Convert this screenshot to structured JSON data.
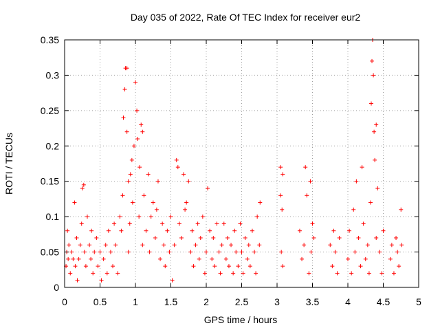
{
  "chart_data": {
    "type": "scatter",
    "title": "Day 035 of 2022, Rate Of TEC Index for receiver eur2",
    "xlabel": "GPS time / hours",
    "ylabel": "ROTI / TECUs",
    "xlim": [
      0,
      5
    ],
    "ylim": [
      0,
      0.35
    ],
    "xticks": [
      0,
      0.5,
      1,
      1.5,
      2,
      2.5,
      3,
      3.5,
      4,
      4.5,
      5
    ],
    "xtick_labels": [
      "0",
      "0.5",
      "1",
      "1.5",
      "2",
      "2.5",
      "3",
      "3.5",
      "4",
      "4.5",
      "5"
    ],
    "yticks": [
      0,
      0.05,
      0.1,
      0.15,
      0.2,
      0.25,
      0.3,
      0.35
    ],
    "ytick_labels": [
      "0",
      "0.05",
      "0.1",
      "0.15",
      "0.2",
      "0.25",
      "0.3",
      "0.35"
    ],
    "grid": true,
    "marker": "+",
    "marker_color": "#ff0000",
    "series": [
      {
        "name": "ROTI",
        "points": [
          [
            0.02,
            0.03
          ],
          [
            0.03,
            0.05
          ],
          [
            0.04,
            0.08
          ],
          [
            0.05,
            0.04
          ],
          [
            0.06,
            0.06
          ],
          [
            0.08,
            0.02
          ],
          [
            0.1,
            0.05
          ],
          [
            0.12,
            0.04
          ],
          [
            0.14,
            0.12
          ],
          [
            0.15,
            0.03
          ],
          [
            0.17,
            0.07
          ],
          [
            0.18,
            0.01
          ],
          [
            0.2,
            0.04
          ],
          [
            0.22,
            0.06
          ],
          [
            0.24,
            0.09
          ],
          [
            0.25,
            0.14
          ],
          [
            0.27,
            0.145
          ],
          [
            0.28,
            0.05
          ],
          [
            0.3,
            0.03
          ],
          [
            0.32,
            0.1
          ],
          [
            0.35,
            0.06
          ],
          [
            0.37,
            0.04
          ],
          [
            0.38,
            0.08
          ],
          [
            0.4,
            0.02
          ],
          [
            0.42,
            0.05
          ],
          [
            0.45,
            0.07
          ],
          [
            0.47,
            0.03
          ],
          [
            0.5,
            0.05
          ],
          [
            0.52,
            0.01
          ],
          [
            0.55,
            0.04
          ],
          [
            0.58,
            0.06
          ],
          [
            0.6,
            0.02
          ],
          [
            0.62,
            0.08
          ],
          [
            0.65,
            0.05
          ],
          [
            0.68,
            0.03
          ],
          [
            0.7,
            0.09
          ],
          [
            0.72,
            0.06
          ],
          [
            0.75,
            0.02
          ],
          [
            0.78,
            0.1
          ],
          [
            0.8,
            0.08
          ],
          [
            0.82,
            0.13
          ],
          [
            0.83,
            0.24
          ],
          [
            0.85,
            0.28
          ],
          [
            0.86,
            0.31
          ],
          [
            0.88,
            0.31
          ],
          [
            0.88,
            0.22
          ],
          [
            0.9,
            0.15
          ],
          [
            0.9,
            0.05
          ],
          [
            0.92,
            0.09
          ],
          [
            0.93,
            0.16
          ],
          [
            0.95,
            0.18
          ],
          [
            0.96,
            0.12
          ],
          [
            0.98,
            0.2
          ],
          [
            1.0,
            0.29
          ],
          [
            1.02,
            0.25
          ],
          [
            1.03,
            0.21
          ],
          [
            1.05,
            0.1
          ],
          [
            1.06,
            0.17
          ],
          [
            1.08,
            0.23
          ],
          [
            1.1,
            0.22
          ],
          [
            1.1,
            0.06
          ],
          [
            1.12,
            0.13
          ],
          [
            1.15,
            0.08
          ],
          [
            1.18,
            0.16
          ],
          [
            1.2,
            0.05
          ],
          [
            1.22,
            0.1
          ],
          [
            1.25,
            0.12
          ],
          [
            1.28,
            0.07
          ],
          [
            1.3,
            0.11
          ],
          [
            1.32,
            0.15
          ],
          [
            1.35,
            0.04
          ],
          [
            1.38,
            0.09
          ],
          [
            1.4,
            0.06
          ],
          [
            1.42,
            0.03
          ],
          [
            1.45,
            0.08
          ],
          [
            1.48,
            0.05
          ],
          [
            1.5,
            0.1
          ],
          [
            1.52,
            0.01
          ],
          [
            1.55,
            0.06
          ],
          [
            1.58,
            0.18
          ],
          [
            1.6,
            0.17
          ],
          [
            1.62,
            0.09
          ],
          [
            1.65,
            0.07
          ],
          [
            1.68,
            0.16
          ],
          [
            1.7,
            0.11
          ],
          [
            1.72,
            0.12
          ],
          [
            1.75,
            0.15
          ],
          [
            1.78,
            0.05
          ],
          [
            1.8,
            0.08
          ],
          [
            1.82,
            0.03
          ],
          [
            1.85,
            0.06
          ],
          [
            1.88,
            0.09
          ],
          [
            1.9,
            0.04
          ],
          [
            1.92,
            0.07
          ],
          [
            1.95,
            0.1
          ],
          [
            1.98,
            0.02
          ],
          [
            2.0,
            0.05
          ],
          [
            2.02,
            0.14
          ],
          [
            2.05,
            0.08
          ],
          [
            2.08,
            0.04
          ],
          [
            2.1,
            0.07
          ],
          [
            2.12,
            0.03
          ],
          [
            2.15,
            0.09
          ],
          [
            2.18,
            0.05
          ],
          [
            2.2,
            0.02
          ],
          [
            2.22,
            0.06
          ],
          [
            2.25,
            0.09
          ],
          [
            2.28,
            0.04
          ],
          [
            2.3,
            0.07
          ],
          [
            2.32,
            0.03
          ],
          [
            2.35,
            0.06
          ],
          [
            2.38,
            0.02
          ],
          [
            2.4,
            0.08
          ],
          [
            2.42,
            0.05
          ],
          [
            2.45,
            0.03
          ],
          [
            2.48,
            0.09
          ],
          [
            2.5,
            0.05
          ],
          [
            2.52,
            0.02
          ],
          [
            2.55,
            0.07
          ],
          [
            2.58,
            0.04
          ],
          [
            2.6,
            0.06
          ],
          [
            2.62,
            0.03
          ],
          [
            2.65,
            0.08
          ],
          [
            2.68,
            0.05
          ],
          [
            2.7,
            0.02
          ],
          [
            2.72,
            0.1
          ],
          [
            2.75,
            0.06
          ],
          [
            2.76,
            0.12
          ],
          [
            3.05,
            0.17
          ],
          [
            3.05,
            0.13
          ],
          [
            3.06,
            0.05
          ],
          [
            3.07,
            0.11
          ],
          [
            3.08,
            0.03
          ],
          [
            3.08,
            0.16
          ],
          [
            3.32,
            0.08
          ],
          [
            3.35,
            0.04
          ],
          [
            3.38,
            0.06
          ],
          [
            3.4,
            0.17
          ],
          [
            3.42,
            0.13
          ],
          [
            3.45,
            0.02
          ],
          [
            3.47,
            0.15
          ],
          [
            3.48,
            0.05
          ],
          [
            3.5,
            0.09
          ],
          [
            3.52,
            0.07
          ],
          [
            3.75,
            0.06
          ],
          [
            3.78,
            0.03
          ],
          [
            3.8,
            0.08
          ],
          [
            3.82,
            0.05
          ],
          [
            3.85,
            0.02
          ],
          [
            3.88,
            0.07
          ],
          [
            4.0,
            0.04
          ],
          [
            4.02,
            0.08
          ],
          [
            4.05,
            0.02
          ],
          [
            4.08,
            0.11
          ],
          [
            4.1,
            0.05
          ],
          [
            4.12,
            0.15
          ],
          [
            4.15,
            0.07
          ],
          [
            4.18,
            0.03
          ],
          [
            4.2,
            0.17
          ],
          [
            4.22,
            0.09
          ],
          [
            4.25,
            0.04
          ],
          [
            4.28,
            0.06
          ],
          [
            4.3,
            0.02
          ],
          [
            4.32,
            0.12
          ],
          [
            4.33,
            0.26
          ],
          [
            4.34,
            0.32
          ],
          [
            4.35,
            0.35
          ],
          [
            4.36,
            0.3
          ],
          [
            4.37,
            0.22
          ],
          [
            4.38,
            0.18
          ],
          [
            4.4,
            0.23
          ],
          [
            4.4,
            0.07
          ],
          [
            4.42,
            0.14
          ],
          [
            4.45,
            0.05
          ],
          [
            4.48,
            0.02
          ],
          [
            4.5,
            0.08
          ],
          [
            4.6,
            0.04
          ],
          [
            4.62,
            0.06
          ],
          [
            4.65,
            0.02
          ],
          [
            4.68,
            0.07
          ],
          [
            4.7,
            0.05
          ],
          [
            4.72,
            0.03
          ],
          [
            4.75,
            0.11
          ],
          [
            4.76,
            0.06
          ]
        ]
      }
    ]
  }
}
